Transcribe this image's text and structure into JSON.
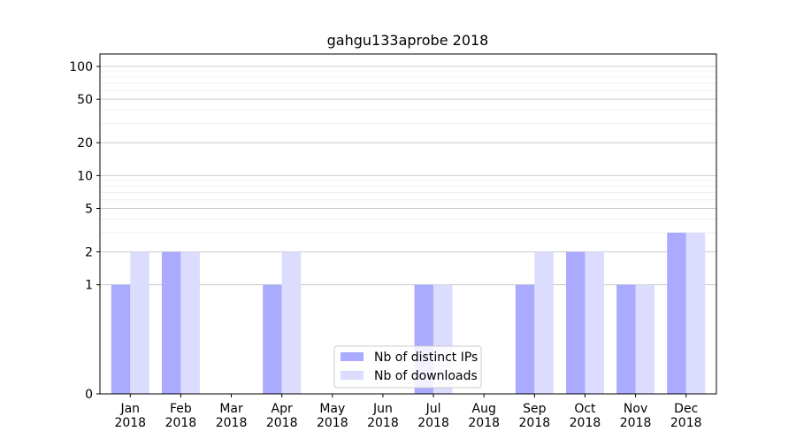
{
  "chart_data": {
    "type": "bar",
    "title": "gahgu133aprobe 2018",
    "xlabel": "",
    "ylabel": "",
    "y_scale": "symlog",
    "ylim": [
      0,
      130
    ],
    "y_ticks": [
      0,
      1,
      2,
      5,
      10,
      20,
      50,
      100
    ],
    "grid": true,
    "legend_position": "lower-center",
    "categories": [
      [
        "Jan",
        "2018"
      ],
      [
        "Feb",
        "2018"
      ],
      [
        "Mar",
        "2018"
      ],
      [
        "Apr",
        "2018"
      ],
      [
        "May",
        "2018"
      ],
      [
        "Jun",
        "2018"
      ],
      [
        "Jul",
        "2018"
      ],
      [
        "Aug",
        "2018"
      ],
      [
        "Sep",
        "2018"
      ],
      [
        "Oct",
        "2018"
      ],
      [
        "Nov",
        "2018"
      ],
      [
        "Dec",
        "2018"
      ]
    ],
    "series": [
      {
        "name": "Nb of distinct IPs",
        "color": "#aaaaff",
        "values": [
          1,
          2,
          0,
          1,
          0,
          0,
          1,
          0,
          1,
          2,
          1,
          3
        ]
      },
      {
        "name": "Nb of downloads",
        "color": "#dcdcff",
        "values": [
          2,
          2,
          0,
          2,
          0,
          0,
          1,
          0,
          2,
          2,
          1,
          3
        ]
      }
    ]
  }
}
